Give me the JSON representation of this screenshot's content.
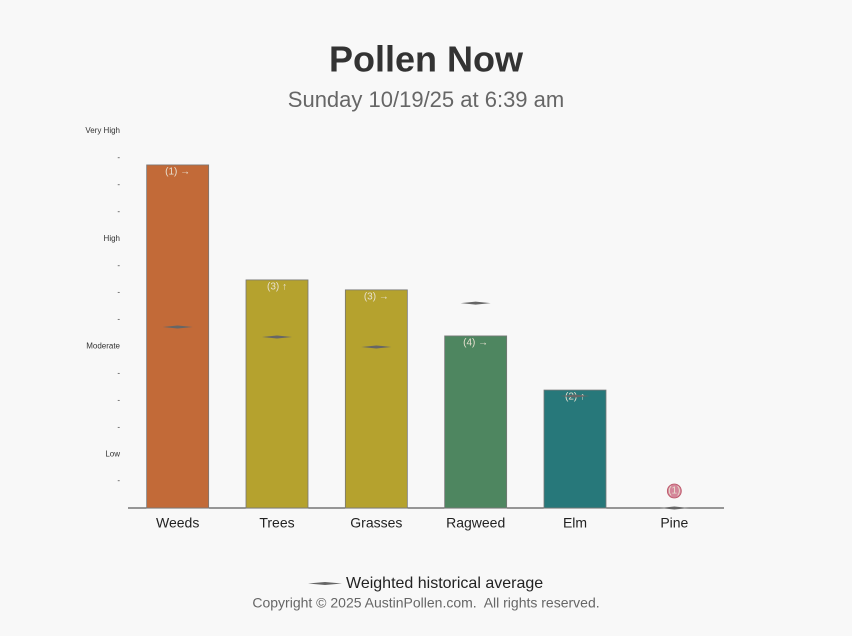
{
  "chart_data": {
    "type": "bar",
    "title": "Pollen Now",
    "subtitle": "Sunday 10/19/25 at 6:39 am",
    "categories": [
      "Weeds",
      "Trees",
      "Grasses",
      "Ragweed",
      "Elm",
      "Pine"
    ],
    "values": [
      12.74,
      8.47,
      8.1,
      6.39,
      4.38,
      0
    ],
    "colors": [
      "#c26a38",
      "#b5a22e",
      "#b5a22e",
      "#4e8660",
      "#27787a",
      "#d4869a"
    ],
    "bar_labels": [
      "(1) →",
      "(3) ↑",
      "(3) →",
      "(4) →",
      "(2) ↑",
      "(1)"
    ],
    "average": {
      "name": "Weighted historical average",
      "color": "#666666",
      "values": [
        6.72,
        6.35,
        5.98,
        7.61,
        4.16,
        0
      ]
    },
    "ylim": [
      0,
      14
    ],
    "yticks": [
      {
        "value": 1,
        "label": "-"
      },
      {
        "value": 2,
        "label": "Low"
      },
      {
        "value": 3,
        "label": "-"
      },
      {
        "value": 4,
        "label": "-"
      },
      {
        "value": 5,
        "label": "-"
      },
      {
        "value": 6,
        "label": "Moderate"
      },
      {
        "value": 7,
        "label": "-"
      },
      {
        "value": 8,
        "label": "-"
      },
      {
        "value": 9,
        "label": "-"
      },
      {
        "value": 10,
        "label": "High"
      },
      {
        "value": 11,
        "label": "-"
      },
      {
        "value": 12,
        "label": "-"
      },
      {
        "value": 13,
        "label": "-"
      },
      {
        "value": 14,
        "label": "Very High"
      }
    ]
  },
  "footer": "Copyright © 2025 AustinPollen.com.  All rights reserved."
}
